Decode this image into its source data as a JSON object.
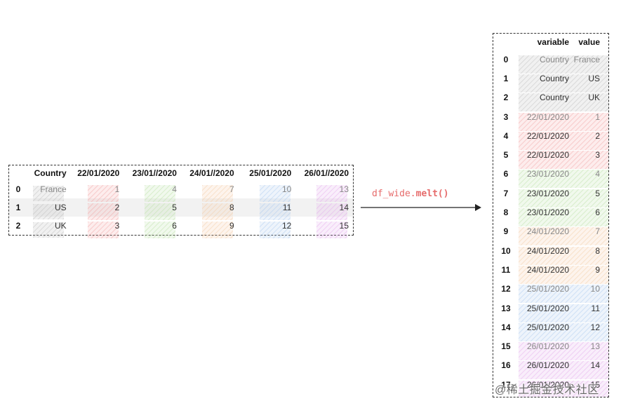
{
  "wide_table": {
    "headers": [
      "Country",
      "22/01/2020",
      "23/01//2020",
      "24/01//2020",
      "25/01/2020",
      "26/01//2020"
    ],
    "rows": [
      {
        "index": "0",
        "country": "France",
        "values": [
          "1",
          "4",
          "7",
          "10",
          "13"
        ]
      },
      {
        "index": "1",
        "country": "US",
        "values": [
          "2",
          "5",
          "8",
          "11",
          "14"
        ]
      },
      {
        "index": "2",
        "country": "UK",
        "values": [
          "3",
          "6",
          "9",
          "12",
          "15"
        ]
      }
    ]
  },
  "operation": {
    "prefix": "df_wide.",
    "method": "melt()"
  },
  "long_table": {
    "headers": [
      "variable",
      "value"
    ],
    "rows": [
      {
        "index": "0",
        "variable": "Country",
        "value": "France"
      },
      {
        "index": "1",
        "variable": "Country",
        "value": "US"
      },
      {
        "index": "2",
        "variable": "Country",
        "value": "UK"
      },
      {
        "index": "3",
        "variable": "22/01/2020",
        "value": "1"
      },
      {
        "index": "4",
        "variable": "22/01/2020",
        "value": "2"
      },
      {
        "index": "5",
        "variable": "22/01/2020",
        "value": "3"
      },
      {
        "index": "6",
        "variable": "23/01/2020",
        "value": "4"
      },
      {
        "index": "7",
        "variable": "23/01/2020",
        "value": "5"
      },
      {
        "index": "8",
        "variable": "23/01/2020",
        "value": "6"
      },
      {
        "index": "9",
        "variable": "24/01/2020",
        "value": "7"
      },
      {
        "index": "10",
        "variable": "24/01/2020",
        "value": "8"
      },
      {
        "index": "11",
        "variable": "24/01/2020",
        "value": "9"
      },
      {
        "index": "12",
        "variable": "25/01/2020",
        "value": "10"
      },
      {
        "index": "13",
        "variable": "25/01/2020",
        "value": "11"
      },
      {
        "index": "14",
        "variable": "25/01/2020",
        "value": "12"
      },
      {
        "index": "15",
        "variable": "26/01/2020",
        "value": "13"
      },
      {
        "index": "16",
        "variable": "26/01/2020",
        "value": "14"
      },
      {
        "index": "17",
        "variable": "26/01/2020",
        "value": "15"
      }
    ]
  },
  "colors": {
    "country": "#bbbbbb",
    "d1": "#f2a2a2",
    "d2": "#b9e0a4",
    "d3": "#f3c9a2",
    "d4": "#a9c8ee",
    "d5": "#e2a9ea",
    "code": "#e66b6b"
  },
  "watermark": "@稀土掘金技术社区"
}
